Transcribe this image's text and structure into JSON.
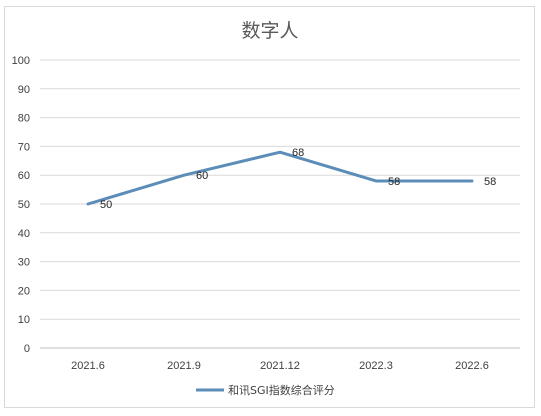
{
  "chart_data": {
    "type": "line",
    "title": "数字人",
    "categories": [
      "2021.6",
      "2021.9",
      "2021.12",
      "2022.3",
      "2022.6"
    ],
    "series": [
      {
        "name": "和讯SGI指数综合评分",
        "values": [
          50,
          60,
          68,
          58,
          58
        ]
      }
    ],
    "ylim": [
      0,
      100
    ],
    "yticks": [
      0,
      10,
      20,
      30,
      40,
      50,
      60,
      70,
      80,
      90,
      100
    ],
    "grid": true,
    "legend": "bottom",
    "colors": {
      "line": "#5b8db8",
      "grid": "#d9d9d9",
      "axis": "#bfbfbf"
    }
  }
}
